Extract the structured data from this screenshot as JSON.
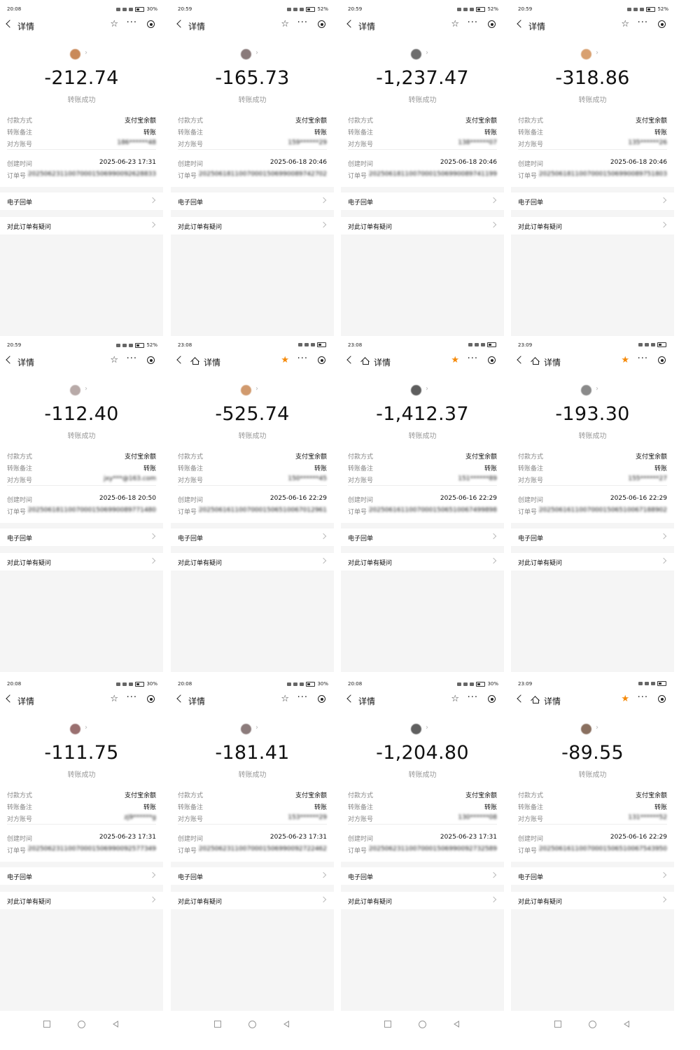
{
  "labels": {
    "back": "",
    "detail": "详情",
    "status": "转账成功",
    "pay_method": "付款方式",
    "note": "转账备注",
    "account": "对方账号",
    "created": "创建时间",
    "order": "订单号",
    "receipt": "电子回单",
    "question": "对此订单有疑问"
  },
  "colors": {
    "accent": "#f58a0a",
    "muted": "#999999",
    "background": "#f5f5f5"
  },
  "screens": [
    {
      "time": "20:08",
      "battery": "30%",
      "home": false,
      "starred": false,
      "amount": "-212.74",
      "pay": "支付宝余额",
      "note": "转账",
      "account": "186******48",
      "created": "2025-06-23 17:31",
      "order": "20250623110070001506990092628833",
      "avatar": "#c98a5a"
    },
    {
      "time": "20:59",
      "battery": "52%",
      "home": false,
      "starred": false,
      "amount": "-165.73",
      "pay": "支付宝余额",
      "note": "转账",
      "account": "159******29",
      "created": "2025-06-18 20:46",
      "order": "20250618110070001506990089742702",
      "avatar": "#8a7b7b"
    },
    {
      "time": "20:59",
      "battery": "52%",
      "home": false,
      "starred": false,
      "amount": "-1,237.47",
      "pay": "支付宝余额",
      "note": "转账",
      "account": "138******07",
      "created": "2025-06-18 20:46",
      "order": "20250618110070001506990089741199",
      "avatar": "#6e6e6e"
    },
    {
      "time": "20:59",
      "battery": "52%",
      "home": false,
      "starred": false,
      "amount": "-318.86",
      "pay": "支付宝余额",
      "note": "转账",
      "account": "135******26",
      "created": "2025-06-18 20:46",
      "order": "20250618110070001506990089751803",
      "avatar": "#d8a070"
    },
    {
      "time": "20:59",
      "battery": "52%",
      "home": false,
      "starred": false,
      "amount": "-112.40",
      "pay": "支付宝余额",
      "note": "转账",
      "account": "jxy***@163.com",
      "created": "2025-06-18 20:50",
      "order": "20250618110070001506990089771480",
      "avatar": "#b8aaa8"
    },
    {
      "time": "23:08",
      "battery": "",
      "home": true,
      "starred": true,
      "amount": "-525.74",
      "pay": "支付宝余额",
      "note": "转账",
      "account": "150******45",
      "created": "2025-06-16 22:29",
      "order": "20250616110070001506510067012961",
      "avatar": "#d19a6e"
    },
    {
      "time": "23:08",
      "battery": "",
      "home": true,
      "starred": true,
      "amount": "-1,412.37",
      "pay": "支付宝余额",
      "note": "转账",
      "account": "151******89",
      "created": "2025-06-16 22:29",
      "order": "20250616110070001506510067499898",
      "avatar": "#5e5e5e"
    },
    {
      "time": "23:09",
      "battery": "",
      "home": true,
      "starred": true,
      "amount": "-193.30",
      "pay": "支付宝余额",
      "note": "转账",
      "account": "155******27",
      "created": "2025-06-16 22:29",
      "order": "20250616110070001506510067188902",
      "avatar": "#8a8a8a"
    },
    {
      "time": "20:08",
      "battery": "30%",
      "home": false,
      "starred": false,
      "amount": "-111.75",
      "pay": "支付宝余额",
      "note": "转账",
      "account": "zj9******g",
      "created": "2025-06-23 17:31",
      "order": "20250623110070001506990092577349",
      "avatar": "#9a7070"
    },
    {
      "time": "20:08",
      "battery": "30%",
      "home": false,
      "starred": false,
      "amount": "-181.41",
      "pay": "支付宝余额",
      "note": "转账",
      "account": "153******29",
      "created": "2025-06-23 17:31",
      "order": "20250623110070001506990092722462",
      "avatar": "#8c7c7c"
    },
    {
      "time": "20:08",
      "battery": "30%",
      "home": false,
      "starred": false,
      "amount": "-1,204.80",
      "pay": "支付宝余额",
      "note": "转账",
      "account": "130******08",
      "created": "2025-06-23 17:31",
      "order": "20250623110070001506990092732589",
      "avatar": "#606060"
    },
    {
      "time": "23:09",
      "battery": "",
      "home": true,
      "starred": true,
      "amount": "-89.55",
      "pay": "支付宝余额",
      "note": "转账",
      "account": "131******52",
      "created": "2025-06-16 22:29",
      "order": "20250616110070001506510067543950",
      "avatar": "#8a7060"
    }
  ]
}
